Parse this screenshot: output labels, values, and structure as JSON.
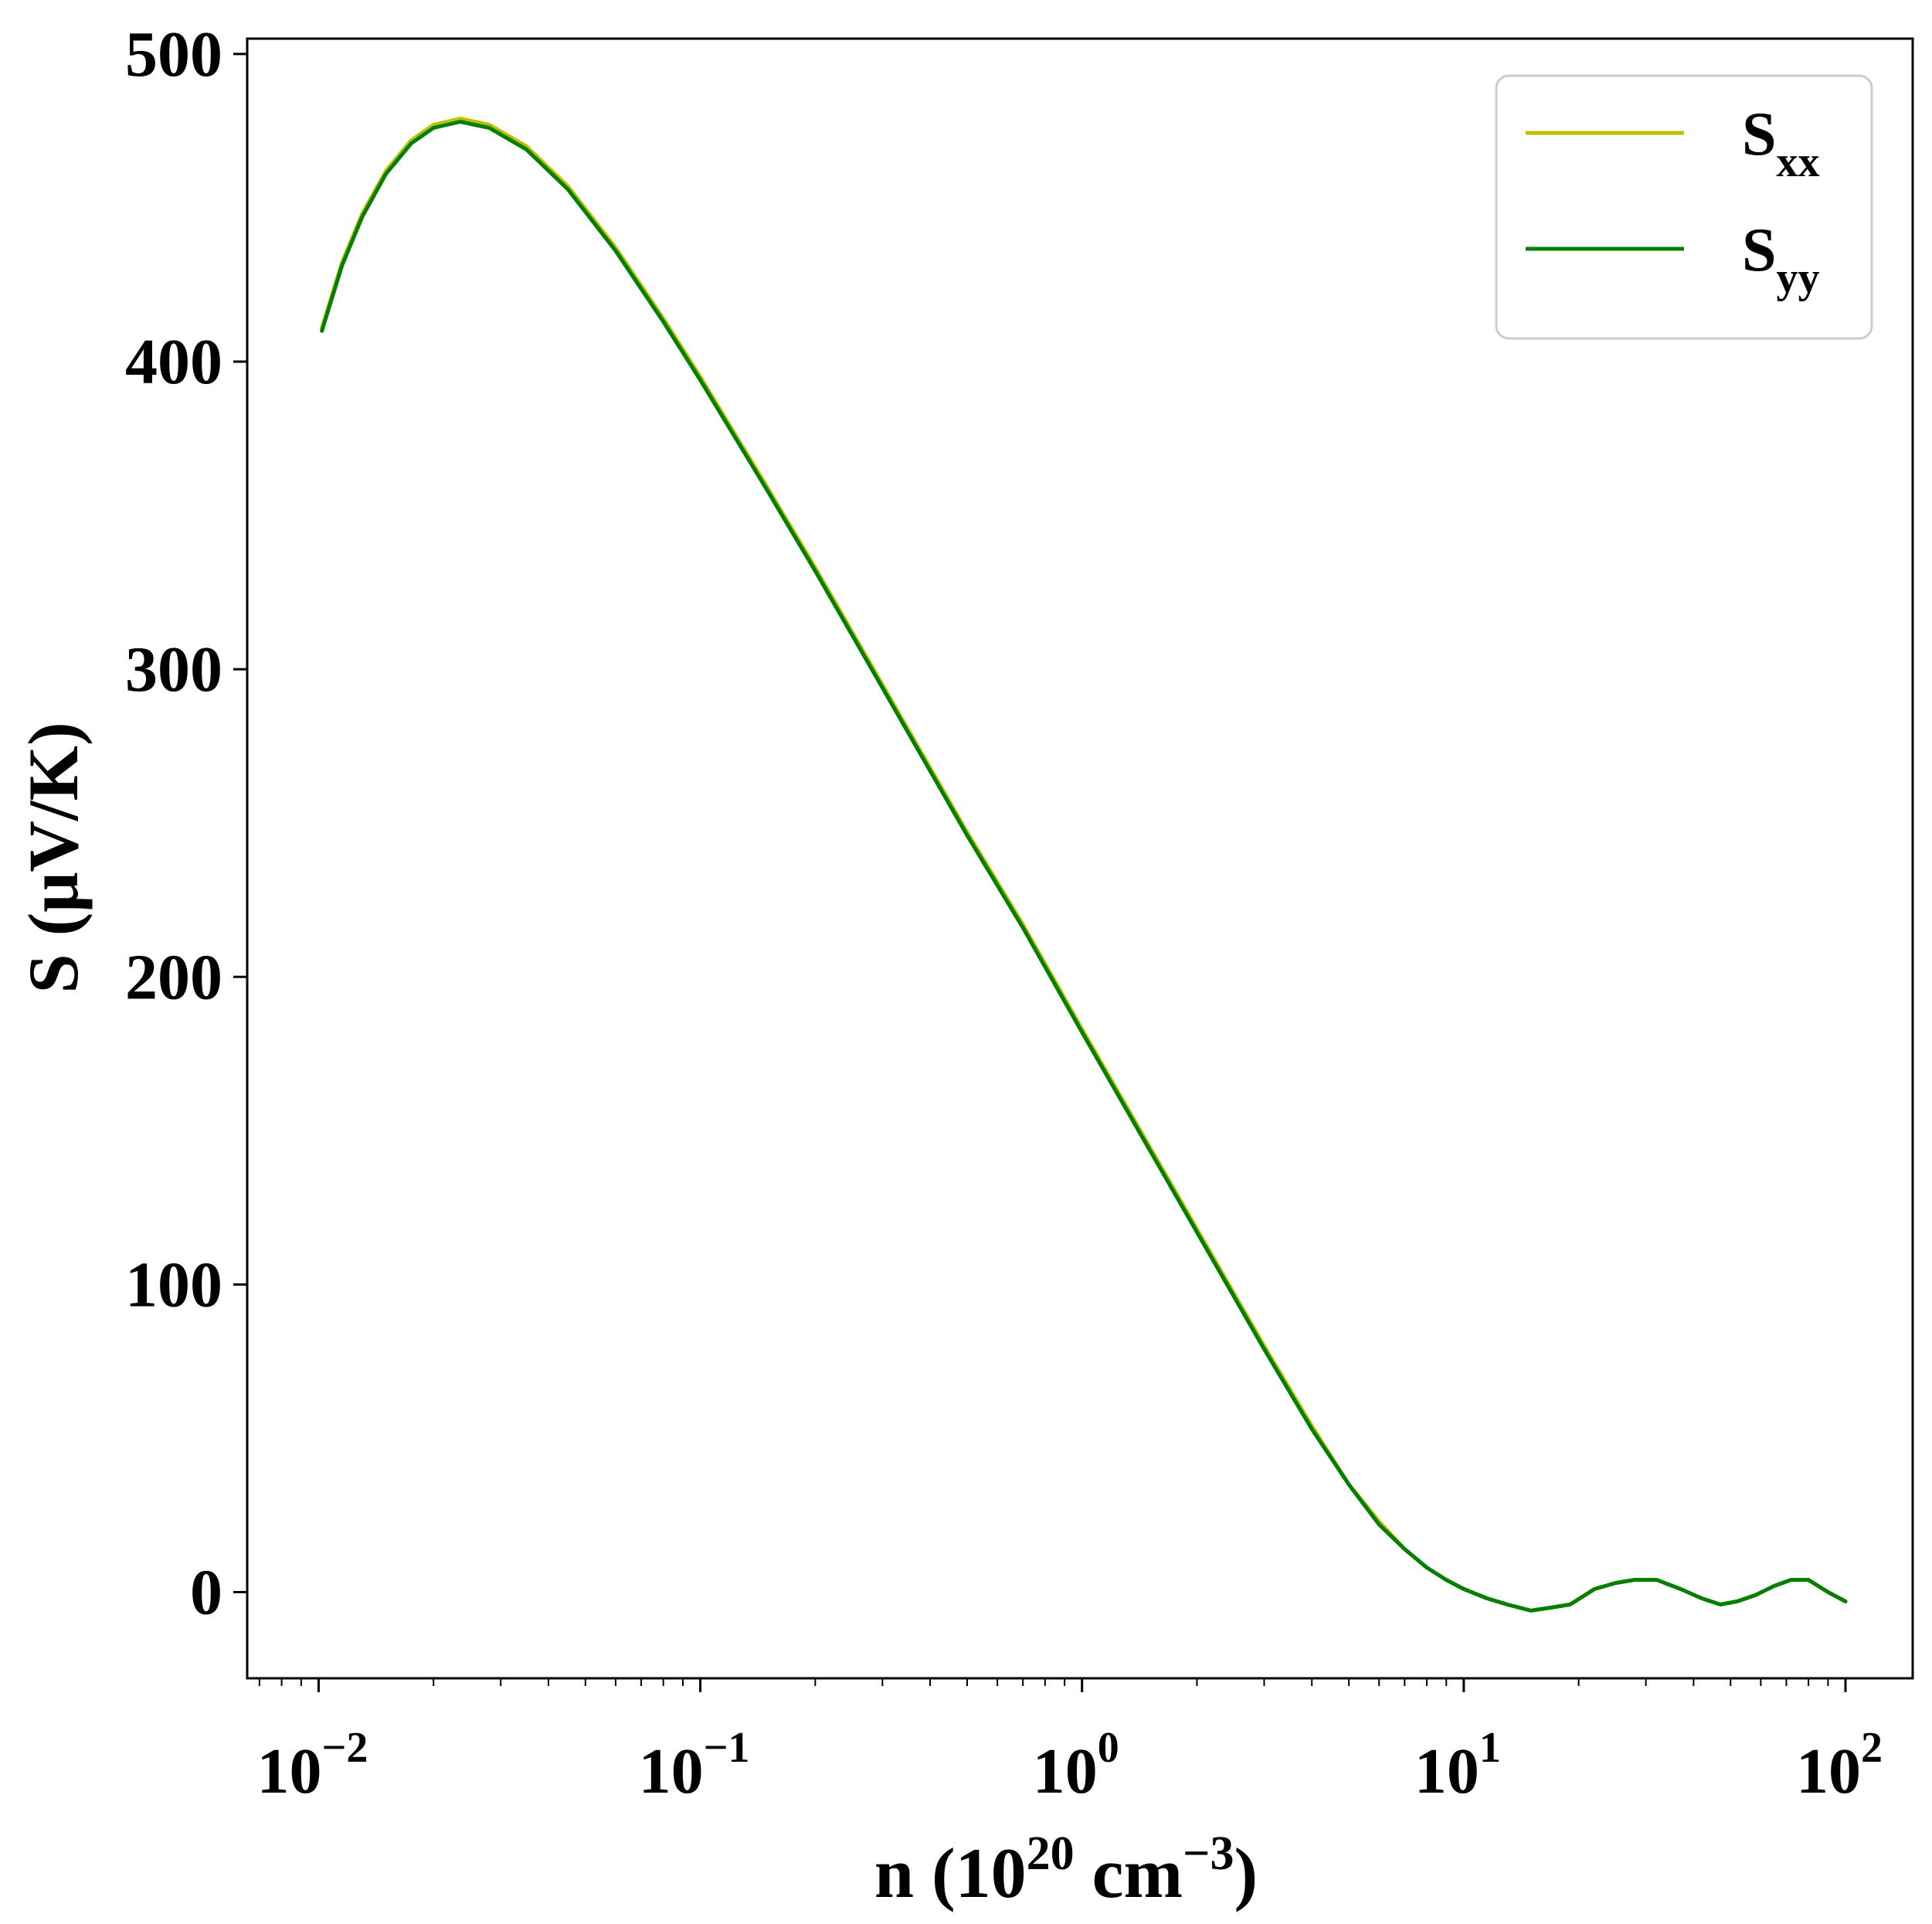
{
  "chart_data": {
    "type": "line",
    "xscale": "log",
    "xlim": [
      0.0065,
      150
    ],
    "ylim": [
      -28,
      505
    ],
    "grid": false,
    "legend_position": "top-right",
    "xlabel": {
      "base": "n (10",
      "sup1": "20",
      "mid": " cm",
      "sup2": "−3",
      "end": ")"
    },
    "ylabel": "S (μV/K)",
    "xticks": [
      {
        "value": 0.01,
        "base": "10",
        "exp": "−2"
      },
      {
        "value": 0.1,
        "base": "10",
        "exp": "−1"
      },
      {
        "value": 1,
        "base": "10",
        "exp": "0"
      },
      {
        "value": 10,
        "base": "10",
        "exp": "1"
      },
      {
        "value": 100,
        "base": "10",
        "exp": "2"
      }
    ],
    "yticks": [
      {
        "value": 0,
        "label": "0"
      },
      {
        "value": 100,
        "label": "100"
      },
      {
        "value": 200,
        "label": "200"
      },
      {
        "value": 300,
        "label": "300"
      },
      {
        "value": 400,
        "label": "400"
      },
      {
        "value": 500,
        "label": "500"
      }
    ],
    "series": [
      {
        "name": "S",
        "sub": "xx",
        "color": "#bfbf00",
        "x": [
          0.0102,
          0.0115,
          0.013,
          0.015,
          0.0175,
          0.02,
          0.0235,
          0.028,
          0.035,
          0.045,
          0.06,
          0.08,
          0.1,
          0.15,
          0.2,
          0.3,
          0.5,
          0.7,
          1.0,
          1.5,
          2.0,
          3.0,
          4.0,
          5.0,
          6.0,
          7.0,
          8.0,
          9.0,
          10.0,
          11.5,
          13.0,
          15.0,
          17.0,
          19.0,
          22.0,
          25.0,
          28.0,
          32.0,
          37.0,
          42.0,
          47.0,
          52.0,
          58.0,
          65.0,
          72.0,
          80.0,
          90.0,
          100.0
        ],
        "y": [
          411,
          432,
          448,
          462,
          472,
          477,
          479,
          477,
          470,
          457,
          437,
          414,
          395,
          359,
          333,
          295,
          247,
          217,
          183,
          145,
          118,
          80,
          54,
          35,
          23,
          14,
          8,
          4,
          1,
          -2,
          -4,
          -6,
          -5,
          -4,
          1,
          3,
          4,
          4,
          1,
          -2,
          -4,
          -3,
          -1,
          2,
          4,
          4,
          0,
          -3
        ]
      },
      {
        "name": "S",
        "sub": "yy",
        "color": "#007f00",
        "x": [
          0.0102,
          0.0115,
          0.013,
          0.015,
          0.0175,
          0.02,
          0.0235,
          0.028,
          0.035,
          0.045,
          0.06,
          0.08,
          0.1,
          0.15,
          0.2,
          0.3,
          0.5,
          0.7,
          1.0,
          1.5,
          2.0,
          3.0,
          4.0,
          5.0,
          6.0,
          7.0,
          8.0,
          9.0,
          10.0,
          11.5,
          13.0,
          15.0,
          17.0,
          19.0,
          22.0,
          25.0,
          28.0,
          32.0,
          37.0,
          42.0,
          47.0,
          52.0,
          58.0,
          65.0,
          72.0,
          80.0,
          90.0,
          100.0
        ],
        "y": [
          410,
          431,
          447,
          461,
          471,
          476,
          478,
          476,
          469,
          456,
          436,
          413,
          394,
          358,
          332,
          294,
          246,
          216,
          182,
          144,
          117,
          79,
          53,
          35,
          22,
          14,
          8,
          4,
          1,
          -2,
          -4,
          -6,
          -5,
          -4,
          1,
          3,
          4,
          4,
          1,
          -2,
          -4,
          -3,
          -1,
          2,
          4,
          4,
          0,
          -3
        ]
      }
    ]
  }
}
